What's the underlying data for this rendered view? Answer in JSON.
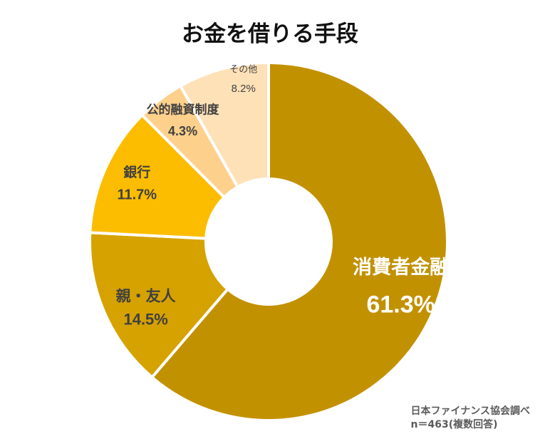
{
  "chart_data": {
    "type": "pie",
    "title": "お金を借りる手段",
    "categories": [
      "消費者金融",
      "親・友人",
      "銀行",
      "公的融資制度",
      "その他"
    ],
    "values": [
      61.3,
      14.5,
      11.7,
      4.3,
      8.2
    ],
    "value_labels": [
      "61.3%",
      "14.5%",
      "11.7%",
      "4.3%",
      "8.2%"
    ],
    "colors": [
      "#C29100",
      "#D6A200",
      "#FCBD00",
      "#FDD08C",
      "#FFE1B8"
    ],
    "label_colors": [
      "#FFFFFF",
      "#404040",
      "#404040",
      "#404040",
      "#404040"
    ],
    "donut": true,
    "start": "12 o'clock",
    "direction": "clockwise"
  },
  "source": {
    "line1": "日本ファイナンス協会調べ",
    "line2": "n＝463(複数回答)"
  }
}
